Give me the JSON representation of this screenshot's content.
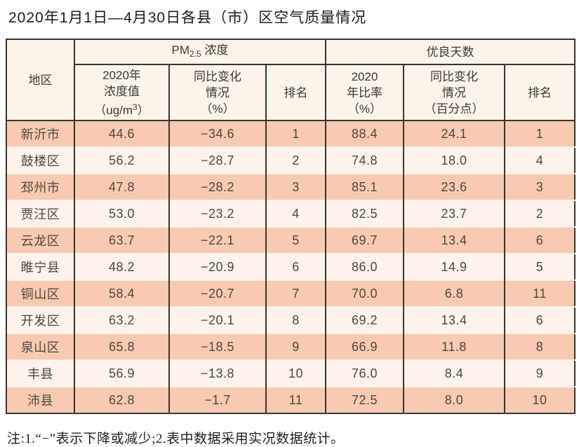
{
  "page": {
    "title": "2020年1月1日—4月30日各县（市）区空气质量情况",
    "note": "注:1.“−”表示下降或减少;2.表中数据采用实况数据统计。"
  },
  "table": {
    "region_header": "地区",
    "pm_group": {
      "prefix": "PM",
      "sub": "2.5",
      "suffix": " 浓度"
    },
    "good_days_group": "优良天数",
    "columns": {
      "pm_value": {
        "line1": "2020年",
        "line2": "浓度值",
        "unit_prefix": "（ug/m",
        "unit_sup": "3",
        "unit_suffix": "）"
      },
      "pm_change": {
        "line1": "同比变化",
        "line2": "情况",
        "line3": "（%）"
      },
      "pm_rank": "排名",
      "gd_ratio": {
        "line1": "2020",
        "line2": "年比率",
        "line3": "（%）"
      },
      "gd_change": {
        "line1": "同比变化",
        "line2": "情况",
        "line3": "（百分点）"
      },
      "gd_rank": "排名"
    }
  },
  "chart_data": {
    "type": "table",
    "title": "2020年1月1日—4月30日各县（市）区空气质量情况",
    "columns": [
      "地区",
      "PM2.5浓度 2020年浓度值(ug/m3)",
      "PM2.5浓度 同比变化情况(%)",
      "PM2.5浓度 排名",
      "优良天数 2020年比率(%)",
      "优良天数 同比变化情况(百分点)",
      "优良天数 排名"
    ],
    "rows": [
      [
        "新沂市",
        44.6,
        -34.6,
        1,
        88.4,
        24.1,
        1
      ],
      [
        "鼓楼区",
        56.2,
        -28.7,
        2,
        74.8,
        18.0,
        4
      ],
      [
        "邳州市",
        47.8,
        -28.2,
        3,
        85.1,
        23.6,
        3
      ],
      [
        "贾汪区",
        53.0,
        -23.2,
        4,
        82.5,
        23.7,
        2
      ],
      [
        "云龙区",
        63.7,
        -22.1,
        5,
        69.7,
        13.4,
        6
      ],
      [
        "睢宁县",
        48.2,
        -20.9,
        6,
        86.0,
        14.9,
        5
      ],
      [
        "铜山区",
        58.4,
        -20.7,
        7,
        70.0,
        6.8,
        11
      ],
      [
        "开发区",
        63.2,
        -20.1,
        8,
        69.2,
        13.4,
        6
      ],
      [
        "泉山区",
        65.8,
        -18.5,
        9,
        66.9,
        11.8,
        8
      ],
      [
        "丰县",
        56.9,
        -13.8,
        10,
        76.0,
        8.4,
        9
      ],
      [
        "沛县",
        62.8,
        -1.7,
        11,
        72.5,
        8.0,
        10
      ]
    ],
    "note": "注:1.“−”表示下降或减少;2.表中数据采用实况数据统计。"
  },
  "colors": {
    "border": "#3a342e",
    "header_bg": "#fbf4ea",
    "row_odd": "#f8cab1",
    "row_even": "#fdf3ec"
  }
}
